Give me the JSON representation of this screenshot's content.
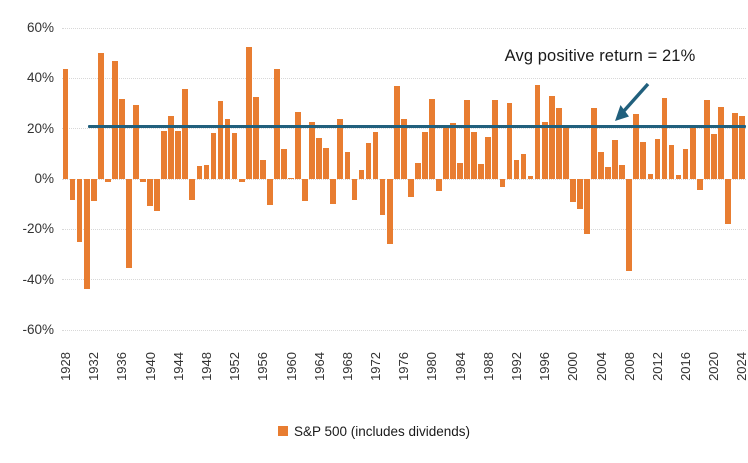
{
  "chart_data": {
    "type": "bar",
    "title": "",
    "xlabel": "",
    "ylabel": "",
    "ylim": [
      -60,
      60
    ],
    "grid": true,
    "legend_position": "bottom",
    "series_name": "S&P 500 (includes dividends)",
    "y_ticks": [
      {
        "label": "60%",
        "value": 60
      },
      {
        "label": "40%",
        "value": 40
      },
      {
        "label": "20%",
        "value": 20
      },
      {
        "label": "0%",
        "value": 0
      },
      {
        "label": "-20%",
        "value": -20
      },
      {
        "label": "-40%",
        "value": -40
      },
      {
        "label": "-60%",
        "value": -60
      }
    ],
    "x_tick_labels": [
      "1928",
      "1932",
      "1936",
      "1940",
      "1944",
      "1948",
      "1952",
      "1956",
      "1960",
      "1964",
      "1968",
      "1972",
      "1976",
      "1980",
      "1984",
      "1988",
      "1992",
      "1996",
      "2000",
      "2004",
      "2008",
      "2012",
      "2016",
      "2020",
      "2024"
    ],
    "x": [
      1928,
      1929,
      1930,
      1931,
      1932,
      1933,
      1934,
      1935,
      1936,
      1937,
      1938,
      1939,
      1940,
      1941,
      1942,
      1943,
      1944,
      1945,
      1946,
      1947,
      1948,
      1949,
      1950,
      1951,
      1952,
      1953,
      1954,
      1955,
      1956,
      1957,
      1958,
      1959,
      1960,
      1961,
      1962,
      1963,
      1964,
      1965,
      1966,
      1967,
      1968,
      1969,
      1970,
      1971,
      1972,
      1973,
      1974,
      1975,
      1976,
      1977,
      1978,
      1979,
      1980,
      1981,
      1982,
      1983,
      1984,
      1985,
      1986,
      1987,
      1988,
      1989,
      1990,
      1991,
      1992,
      1993,
      1994,
      1995,
      1996,
      1997,
      1998,
      1999,
      2000,
      2001,
      2002,
      2003,
      2004,
      2005,
      2006,
      2007,
      2008,
      2009,
      2010,
      2011,
      2012,
      2013,
      2014,
      2015,
      2016,
      2017,
      2018,
      2019,
      2020,
      2021,
      2022,
      2023,
      2024
    ],
    "values": [
      43.8,
      -8.3,
      -25.1,
      -43.8,
      -8.6,
      50.0,
      -1.2,
      46.7,
      31.9,
      -35.3,
      29.3,
      -1.1,
      -10.7,
      -12.8,
      19.2,
      25.1,
      19.0,
      35.8,
      -8.4,
      5.2,
      5.7,
      18.3,
      30.8,
      23.7,
      18.2,
      -1.2,
      52.6,
      32.6,
      7.4,
      -10.5,
      43.7,
      12.1,
      0.3,
      26.6,
      -8.8,
      22.6,
      16.4,
      12.4,
      -10.0,
      23.8,
      10.8,
      -8.2,
      3.6,
      14.2,
      18.8,
      -14.3,
      -25.9,
      37.0,
      23.8,
      -7.0,
      6.5,
      18.5,
      31.7,
      -4.7,
      20.4,
      22.3,
      6.2,
      31.2,
      18.5,
      5.8,
      16.5,
      31.5,
      -3.1,
      30.2,
      7.5,
      10.0,
      1.3,
      37.2,
      22.7,
      33.1,
      28.3,
      20.9,
      -9.0,
      -11.9,
      -22.0,
      28.4,
      10.7,
      4.8,
      15.6,
      5.5,
      -36.6,
      25.9,
      14.8,
      2.1,
      15.9,
      32.2,
      13.5,
      1.4,
      11.8,
      21.6,
      -4.2,
      31.2,
      18.0,
      28.5,
      -18.0,
      26.1,
      25.0
    ],
    "avg_line_value": 21,
    "annotation": "Avg positive return = 21%"
  },
  "annotation": {
    "text": "Avg positive return = 21%"
  },
  "legend": {
    "label": "S&P 500 (includes dividends)"
  },
  "colors": {
    "bar": "#E87D31",
    "avg_line": "#21607D",
    "arrow": "#21607D",
    "grid": "#D8D8D8",
    "axis_text": "#333333",
    "text": "#1A1A1A"
  }
}
